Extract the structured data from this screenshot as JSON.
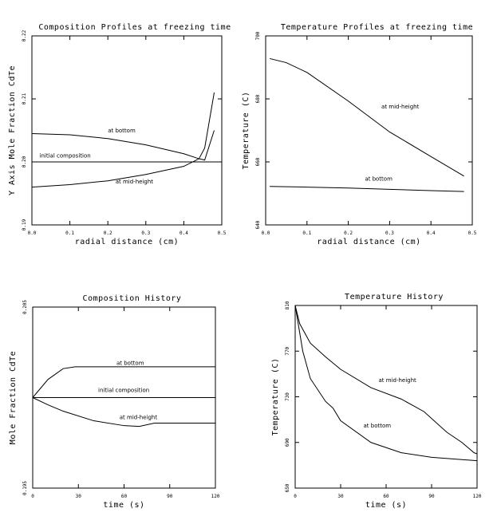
{
  "chart_data": [
    {
      "type": "line",
      "title": "Composition Profiles at freezing time",
      "xlabel": "radial distance (cm)",
      "ylabel": "Y Axis Mole Fraction CdTe",
      "xlim": [
        0,
        0.5
      ],
      "xticks": [
        {
          "value": 0,
          "label": "0.0"
        },
        0.1,
        0.2,
        0.3,
        0.4,
        0.5
      ],
      "ylim": [
        0.19,
        0.22
      ],
      "yticks": [
        0.19,
        {
          "value": 0.2,
          "label": "0.20"
        },
        0.21,
        0.22
      ],
      "series": [
        {
          "name": "at bottom",
          "color": "#000000",
          "x": [
            0,
            0.1,
            0.2,
            0.3,
            0.4,
            0.44,
            0.455,
            0.48
          ],
          "values": [
            0.2045,
            0.2043,
            0.2037,
            0.2027,
            0.2013,
            0.2005,
            0.2003,
            0.205
          ]
        },
        {
          "name": "initial composition",
          "color": "#000000",
          "x": [
            0,
            0.5
          ],
          "values": [
            0.2,
            0.2
          ]
        },
        {
          "name": "at mid-height",
          "color": "#000000",
          "x": [
            0,
            0.1,
            0.2,
            0.3,
            0.4,
            0.44,
            0.455,
            0.48
          ],
          "values": [
            0.196,
            0.1964,
            0.197,
            0.198,
            0.1993,
            0.2005,
            0.2022,
            0.211
          ]
        }
      ]
    },
    {
      "type": "line",
      "title": "Temperature Profiles at freezing time",
      "xlabel": "radial distance (cm)",
      "ylabel": "Temperature (C)",
      "xlim": [
        0,
        0.5
      ],
      "xticks": [
        {
          "value": 0,
          "label": "0.0"
        },
        0.1,
        0.2,
        0.3,
        0.4,
        0.5
      ],
      "ylim": [
        640,
        700
      ],
      "yticks": [
        640,
        660,
        680,
        700
      ],
      "series": [
        {
          "name": "at mid-height",
          "color": "#000000",
          "x": [
            0.01,
            0.05,
            0.1,
            0.2,
            0.3,
            0.4,
            0.48
          ],
          "values": [
            692.8,
            691.5,
            688.4,
            679.3,
            669.5,
            661.7,
            655.5
          ]
        },
        {
          "name": "at bottom",
          "color": "#000000",
          "x": [
            0.01,
            0.1,
            0.2,
            0.3,
            0.4,
            0.48
          ],
          "values": [
            652.2,
            652,
            651.7,
            651.3,
            650.9,
            650.6
          ]
        }
      ]
    },
    {
      "type": "line",
      "title": "Composition History",
      "xlabel": "time (s)",
      "ylabel": "Mole Fraction CdTe",
      "xlim": [
        0,
        120
      ],
      "xticks": [
        0,
        30,
        60,
        90,
        120
      ],
      "ylim": [
        0.195,
        0.205
      ],
      "yticks": [
        0.195,
        0.205
      ],
      "series": [
        {
          "name": "at bottom",
          "color": "#000000",
          "x": [
            0,
            10,
            20,
            28,
            120
          ],
          "values": [
            0.2,
            0.201,
            0.2016,
            0.2017,
            0.2017
          ]
        },
        {
          "name": "initial composition",
          "color": "#000000",
          "x": [
            0,
            120
          ],
          "values": [
            0.2,
            0.2
          ]
        },
        {
          "name": "at mid-height",
          "color": "#000000",
          "x": [
            0,
            10,
            20,
            40,
            60,
            70,
            80,
            120
          ],
          "values": [
            0.2,
            0.1996,
            0.19925,
            0.19872,
            0.19845,
            0.19841,
            0.19859,
            0.19859
          ]
        }
      ]
    },
    {
      "type": "line",
      "title": "Temperature History",
      "xlabel": "time (s)",
      "ylabel": "Temperature (C)",
      "xlim": [
        0,
        120
      ],
      "xticks": [
        0,
        30,
        60,
        90,
        120
      ],
      "ylim": [
        650,
        810
      ],
      "yticks": [
        650,
        690,
        730,
        770,
        810
      ],
      "series": [
        {
          "name": "at mid-height",
          "color": "#000000",
          "x": [
            0,
            3,
            10,
            20,
            30,
            50,
            70,
            85,
            100,
            110,
            118,
            120
          ],
          "values": [
            810,
            794,
            777,
            765,
            754,
            738,
            728,
            717,
            699,
            690,
            681,
            680
          ]
        },
        {
          "name": "at bottom",
          "color": "#000000",
          "x": [
            0,
            5,
            10,
            20,
            25,
            30,
            50,
            70,
            90,
            110,
            120
          ],
          "values": [
            810,
            770,
            746,
            726,
            720,
            709,
            690,
            681,
            677,
            675,
            674
          ]
        }
      ]
    }
  ]
}
